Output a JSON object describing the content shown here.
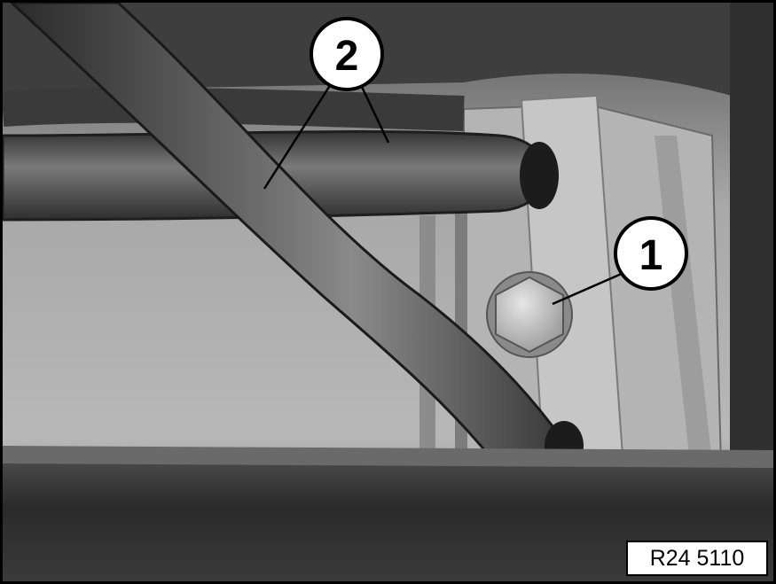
{
  "callouts": [
    {
      "id": "1",
      "label": "1"
    },
    {
      "id": "2",
      "label": "2"
    }
  ],
  "reference_code": "R24 5110"
}
